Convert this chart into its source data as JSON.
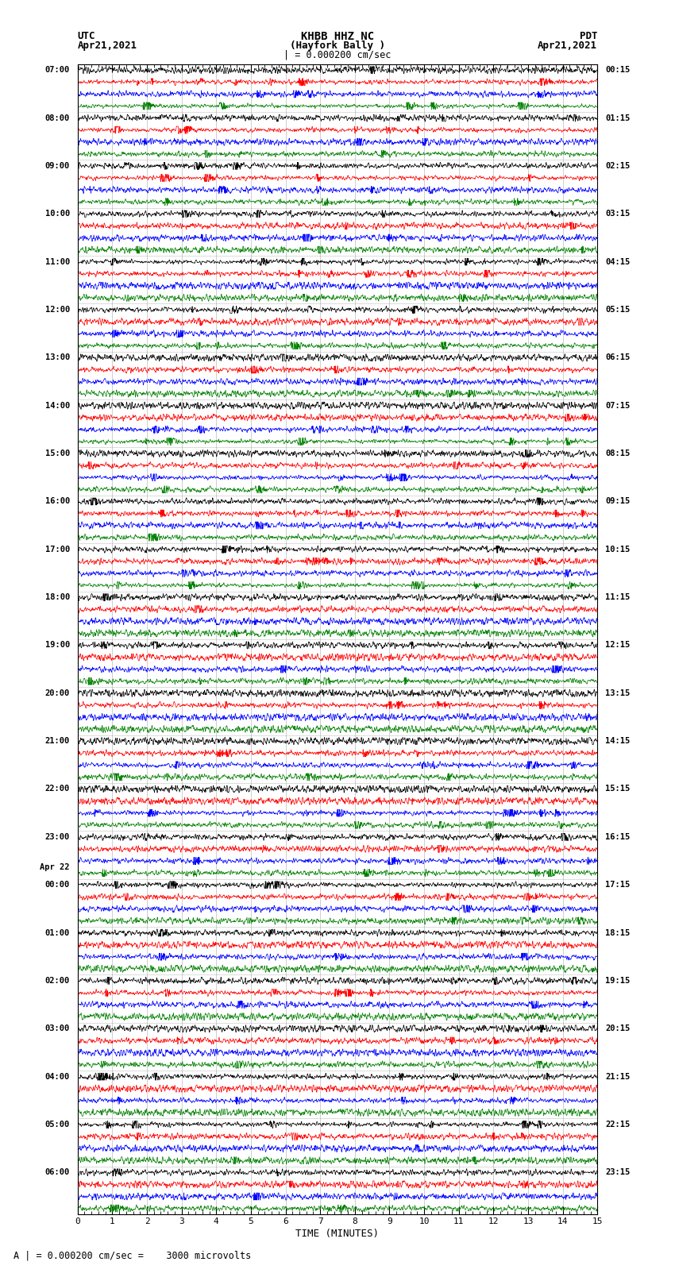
{
  "title_line1": "KHBB HHZ NC",
  "title_line2": "(Hayfork Bally )",
  "title_line3": "| = 0.000200 cm/sec",
  "left_label_top": "UTC",
  "left_label_date": "Apr21,2021",
  "right_label_top": "PDT",
  "right_label_date": "Apr21,2021",
  "xlabel": "TIME (MINUTES)",
  "footer_text": "A | = 0.000200 cm/sec =    3000 microvolts",
  "background_color": "#ffffff",
  "trace_colors": [
    "#000000",
    "#ff0000",
    "#0000ff",
    "#008000"
  ],
  "num_rows": 24,
  "traces_per_row": 4,
  "minutes_per_row": 15,
  "fig_width": 8.5,
  "fig_height": 16.13,
  "left_time_labels": [
    "07:00",
    "08:00",
    "09:00",
    "10:00",
    "11:00",
    "12:00",
    "13:00",
    "14:00",
    "15:00",
    "16:00",
    "17:00",
    "18:00",
    "19:00",
    "20:00",
    "21:00",
    "22:00",
    "23:00",
    "Apr 22\n00:00",
    "01:00",
    "02:00",
    "03:00",
    "04:00",
    "05:00",
    "06:00"
  ],
  "right_time_labels": [
    "00:15",
    "01:15",
    "02:15",
    "03:15",
    "04:15",
    "05:15",
    "06:15",
    "07:15",
    "08:15",
    "09:15",
    "10:15",
    "11:15",
    "12:15",
    "13:15",
    "14:15",
    "15:15",
    "16:15",
    "17:15",
    "18:15",
    "19:15",
    "20:15",
    "21:15",
    "22:15",
    "23:15"
  ]
}
